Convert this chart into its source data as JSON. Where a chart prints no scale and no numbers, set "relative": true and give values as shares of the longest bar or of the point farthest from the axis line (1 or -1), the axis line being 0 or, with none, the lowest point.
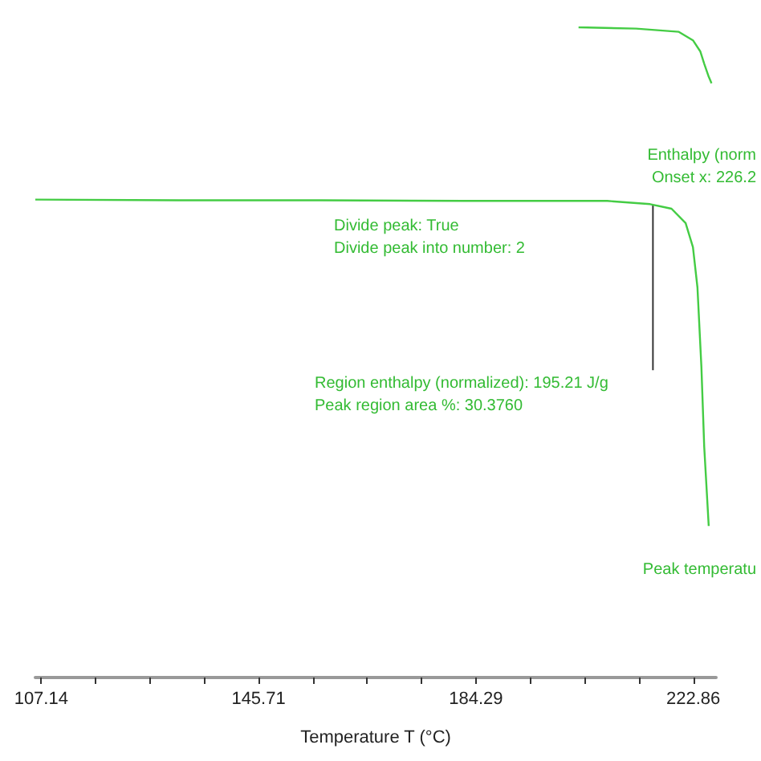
{
  "chart_data": {
    "type": "line",
    "relative": true,
    "xlabel": "Temperature T (°C)",
    "xlim": [
      106.1,
      226.9
    ],
    "xticks": [
      107.14,
      {
        "value": 116.78,
        "label": null
      },
      {
        "value": 126.43,
        "label": null
      },
      {
        "value": 136.07,
        "label": null
      },
      145.71,
      {
        "value": 155.35,
        "label": null
      },
      {
        "value": 165.0,
        "label": null
      },
      {
        "value": 174.64,
        "label": null
      },
      184.29,
      {
        "value": 193.93,
        "label": null
      },
      {
        "value": 203.57,
        "label": null
      },
      {
        "value": 213.22,
        "label": null
      },
      222.86
    ],
    "grid": false,
    "marker": "none",
    "line_style": "solid",
    "series": [
      {
        "color": "#44cc44",
        "x": [
          202.5,
          212.7,
          220.3,
          222.8,
          224.1,
          224.8,
          225.6,
          226.1
        ],
        "values": [
          1.0,
          0.998,
          0.993,
          0.98,
          0.963,
          0.944,
          0.924,
          0.914
        ]
      },
      {
        "color": "#44cc44",
        "x": [
          106.1,
          131.5,
          156.8,
          182.2,
          207.6,
          215.2,
          219.0,
          221.5,
          222.8,
          223.6,
          224.3,
          224.8,
          225.6
        ],
        "values": [
          0.735,
          0.734,
          0.734,
          0.733,
          0.733,
          0.728,
          0.721,
          0.699,
          0.662,
          0.6,
          0.478,
          0.355,
          0.233
        ]
      }
    ],
    "ref_lines": [
      {
        "axis": "x",
        "value": 215.7,
        "color": "#333333"
      }
    ],
    "annotations": [
      "Enthalpy (norm",
      "Onset x: 226.2",
      "Divide peak: True",
      "Divide peak into number: 2",
      "Region enthalpy (normalized): 195.21 J/g",
      "Peak region area %: 30.3760",
      "Peak temperatu"
    ]
  }
}
